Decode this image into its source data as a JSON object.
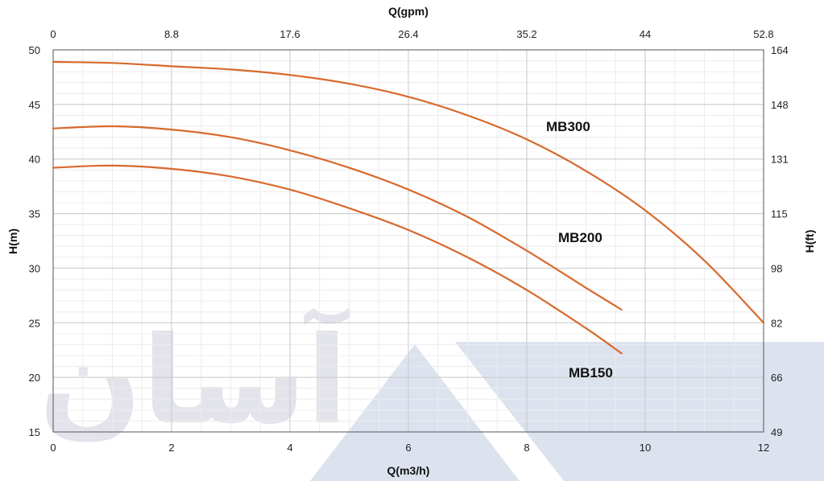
{
  "chart_data": {
    "type": "line",
    "xlabel_bottom": "Q(m3/h)",
    "xlabel_top": "Q(gpm)",
    "ylabel_left": "H(m)",
    "ylabel_right": "H(ft)",
    "xlim": [
      0,
      12
    ],
    "ylim": [
      15,
      50
    ],
    "x_ticks_bottom": [
      "0",
      "2",
      "4",
      "6",
      "8",
      "10",
      "12"
    ],
    "x_ticks_top": [
      "0",
      "8.8",
      "17.6",
      "26.4",
      "35.2",
      "44",
      "52.8"
    ],
    "y_ticks_left": [
      "50",
      "45",
      "40",
      "35",
      "30",
      "25",
      "20",
      "15"
    ],
    "y_ticks_right": [
      "164",
      "148",
      "131",
      "115",
      "98",
      "82",
      "66",
      "49"
    ],
    "grid": true,
    "series": [
      {
        "name": "MB300",
        "x": [
          0,
          1,
          2,
          3,
          4,
          5,
          6,
          7,
          8,
          9,
          10,
          11,
          12
        ],
        "y": [
          48.9,
          48.8,
          48.5,
          48.2,
          47.7,
          46.9,
          45.7,
          44.0,
          41.8,
          38.9,
          35.3,
          30.7,
          25.0
        ],
        "color": "#d8692c"
      },
      {
        "name": "MB200",
        "x": [
          0,
          1,
          2,
          3,
          4,
          5,
          6,
          7,
          8,
          9,
          9.6
        ],
        "y": [
          42.8,
          43.0,
          42.7,
          42.0,
          40.8,
          39.2,
          37.2,
          34.7,
          31.6,
          28.2,
          26.2
        ],
        "color": "#d8692c"
      },
      {
        "name": "MB150",
        "x": [
          0,
          1,
          2,
          3,
          4,
          5,
          6,
          7,
          8,
          9,
          9.6
        ],
        "y": [
          39.2,
          39.4,
          39.1,
          38.4,
          37.2,
          35.5,
          33.5,
          31.0,
          28.0,
          24.5,
          22.2
        ],
        "color": "#d8692c"
      }
    ]
  },
  "watermark": {
    "text": "آسان",
    "color": "#e3e3ec",
    "triangle_color": "#dde2ef"
  }
}
